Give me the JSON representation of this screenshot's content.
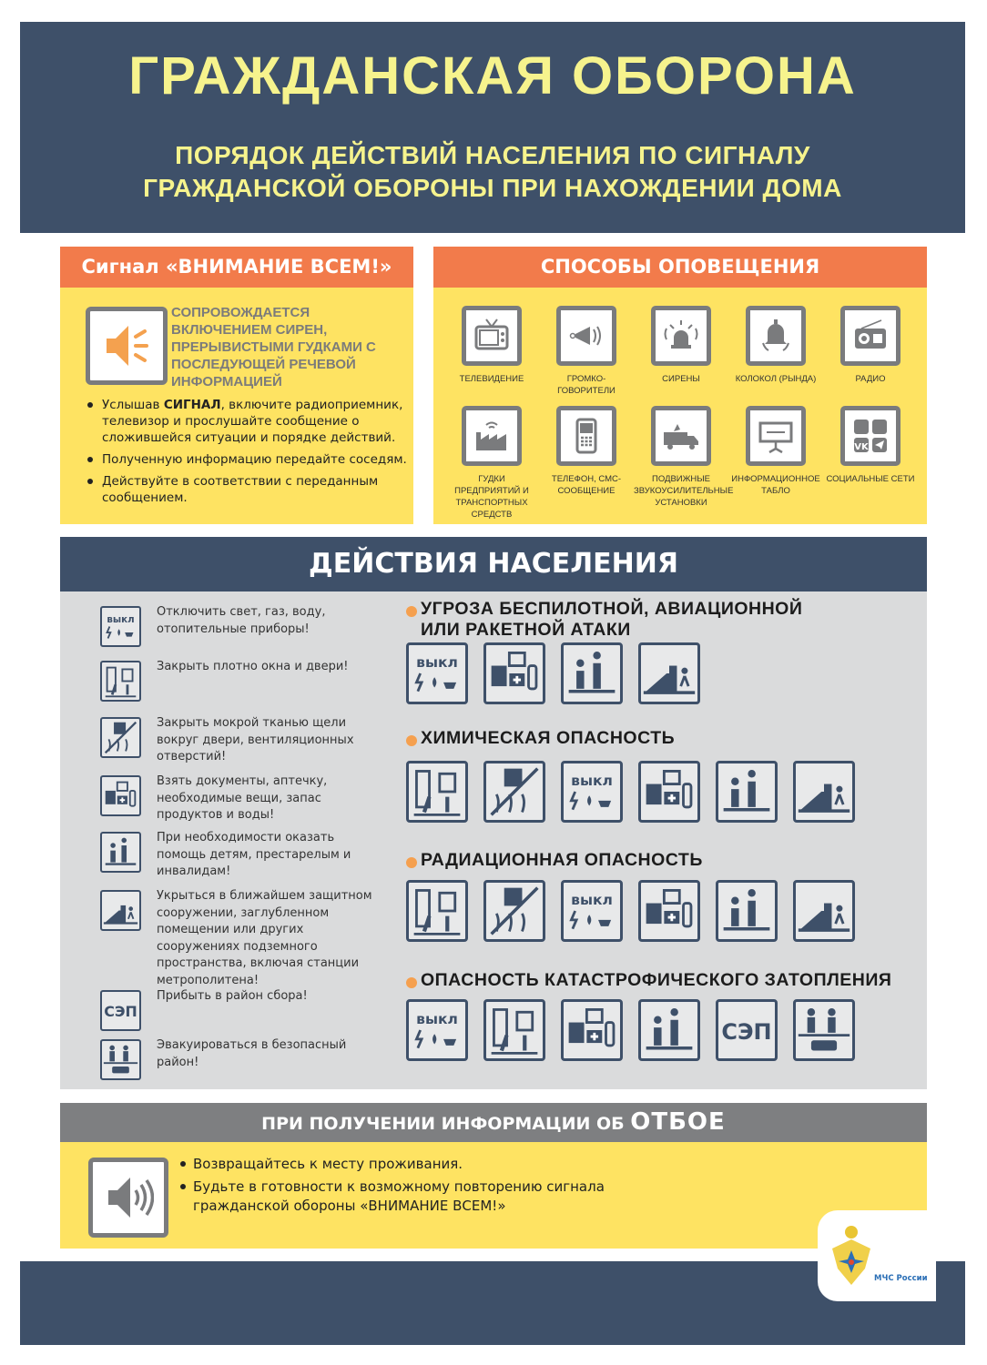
{
  "header": {
    "title": "ГРАЖДАНСКАЯ ОБОРОНА",
    "subtitle_line1": "ПОРЯДОК ДЕЙСТВИЙ НАСЕЛЕНИЯ ПО СИГНАЛУ",
    "subtitle_line2": "ГРАЖДАНСКОЙ ОБОРОНЫ ПРИ НАХОЖДЕНИИ ДОМА"
  },
  "signal": {
    "title": "Сигнал  «ВНИМАНИЕ ВСЕМ!»",
    "icon": "speaker-icon",
    "description": "СОПРОВОЖДАЕТСЯ ВКЛЮЧЕНИЕМ СИРЕН, ПРЕРЫВИСТЫМИ ГУДКАМИ С ПОСЛЕДУЮЩЕЙ РЕЧЕВОЙ ИНФОРМАЦИЕЙ",
    "bullet1_pre": "Услышав ",
    "bullet1_bold": "СИГНАЛ",
    "bullet1_post": ", включите радиоприемник, телевизор и прослушайте сообщение о сложившейся ситуации и порядке действий.",
    "bullet2": "Полученную информацию передайте соседям.",
    "bullet3": "Действуйте в соответствии с переданным сообщением."
  },
  "notify": {
    "title": "СПОСОБЫ ОПОВЕЩЕНИЯ",
    "items": [
      {
        "label": "ТЕЛЕВИДЕНИЕ",
        "icon": "tv"
      },
      {
        "label": "ГРОМКО-ГОВОРИТЕЛИ",
        "icon": "loudspeaker"
      },
      {
        "label": "СИРЕНЫ",
        "icon": "siren"
      },
      {
        "label": "КОЛОКОЛ (РЫНДА)",
        "icon": "bell"
      },
      {
        "label": "РАДИО",
        "icon": "radio"
      },
      {
        "label": "ГУДКИ ПРЕДПРИЯТИЙ И ТРАНСПОРТНЫХ СРЕДСТВ",
        "icon": "factory"
      },
      {
        "label": "ТЕЛЕФОН, СМС-СООБЩЕНИЕ",
        "icon": "phone"
      },
      {
        "label": "ПОДВИЖНЫЕ ЗВУКОУСИЛИТЕЛЬНЫЕ УСТАНОВКИ",
        "icon": "truck"
      },
      {
        "label": "ИНФОРМАЦИОННОЕ ТАБЛО",
        "icon": "board"
      },
      {
        "label": "СОЦИАЛЬНЫЕ СЕТИ",
        "icon": "social"
      }
    ]
  },
  "actions": {
    "title": "ДЕЙСТВИЯ НАСЕЛЕНИЯ",
    "legend": [
      {
        "icon": "off",
        "text": "Отключить свет, газ, воду, отопительные приборы!"
      },
      {
        "icon": "doors",
        "text": "Закрыть плотно окна и двери!"
      },
      {
        "icon": "seal",
        "text": "Закрыть мокрой тканью щели вокруг двери, вентиляционных отверстий!"
      },
      {
        "icon": "kit",
        "text": "Взять документы, аптечку, необходимые вещи, запас продуктов и воды!"
      },
      {
        "icon": "help",
        "text": "При необходимости оказать помощь детям, престарелым и инвалидам!"
      },
      {
        "icon": "shelter",
        "text": "Укрыться в ближайшем защитном сооружении, заглубленном помещении или других сооружениях подземного пространства, включая станции метрополитена!"
      },
      {
        "icon": "sep",
        "text": "Прибыть в район сбора!"
      },
      {
        "icon": "evac",
        "text": "Эвакуироваться в безопасный район!"
      }
    ],
    "off_label": "ВЫКЛ",
    "sep_label": "СЭП",
    "scenarios": [
      {
        "title": "УГРОЗА БЕСПИЛОТНОЙ, АВИАЦИОННОЙ ИЛИ РАКЕТНОЙ АТАКИ",
        "icons": [
          "off",
          "kit",
          "help",
          "shelter"
        ]
      },
      {
        "title": "ХИМИЧЕСКАЯ ОПАСНОСТЬ",
        "icons": [
          "doors",
          "seal",
          "off",
          "kit",
          "help",
          "shelter"
        ]
      },
      {
        "title": "РАДИАЦИОННАЯ ОПАСНОСТЬ",
        "icons": [
          "doors",
          "seal",
          "off",
          "kit",
          "help",
          "shelter"
        ]
      },
      {
        "title": "ОПАСНОСТЬ КАТАСТРОФИЧЕСКОГО ЗАТОПЛЕНИЯ",
        "icons": [
          "off",
          "doors",
          "kit",
          "help",
          "sep",
          "evac"
        ]
      }
    ]
  },
  "otboy": {
    "title_pre": "ПРИ ПОЛУЧЕНИИ ИНФОРМАЦИИ ОБ ",
    "title_bold": "ОТБОЕ",
    "icon": "speaker-icon",
    "bullet1": "Возвращайтесь к месту проживания.",
    "bullet2": "Будьте в готовности к возможному повторению сигнала гражданской обороны «ВНИМАНИЕ ВСЕМ!»"
  },
  "logo": {
    "text": "МЧС России"
  },
  "colors": {
    "navy": "#3e5069",
    "orange": "#f27b4b",
    "yellow": "#fee362",
    "title_yellow": "#f6f38d",
    "gray": "#dadbdc"
  }
}
